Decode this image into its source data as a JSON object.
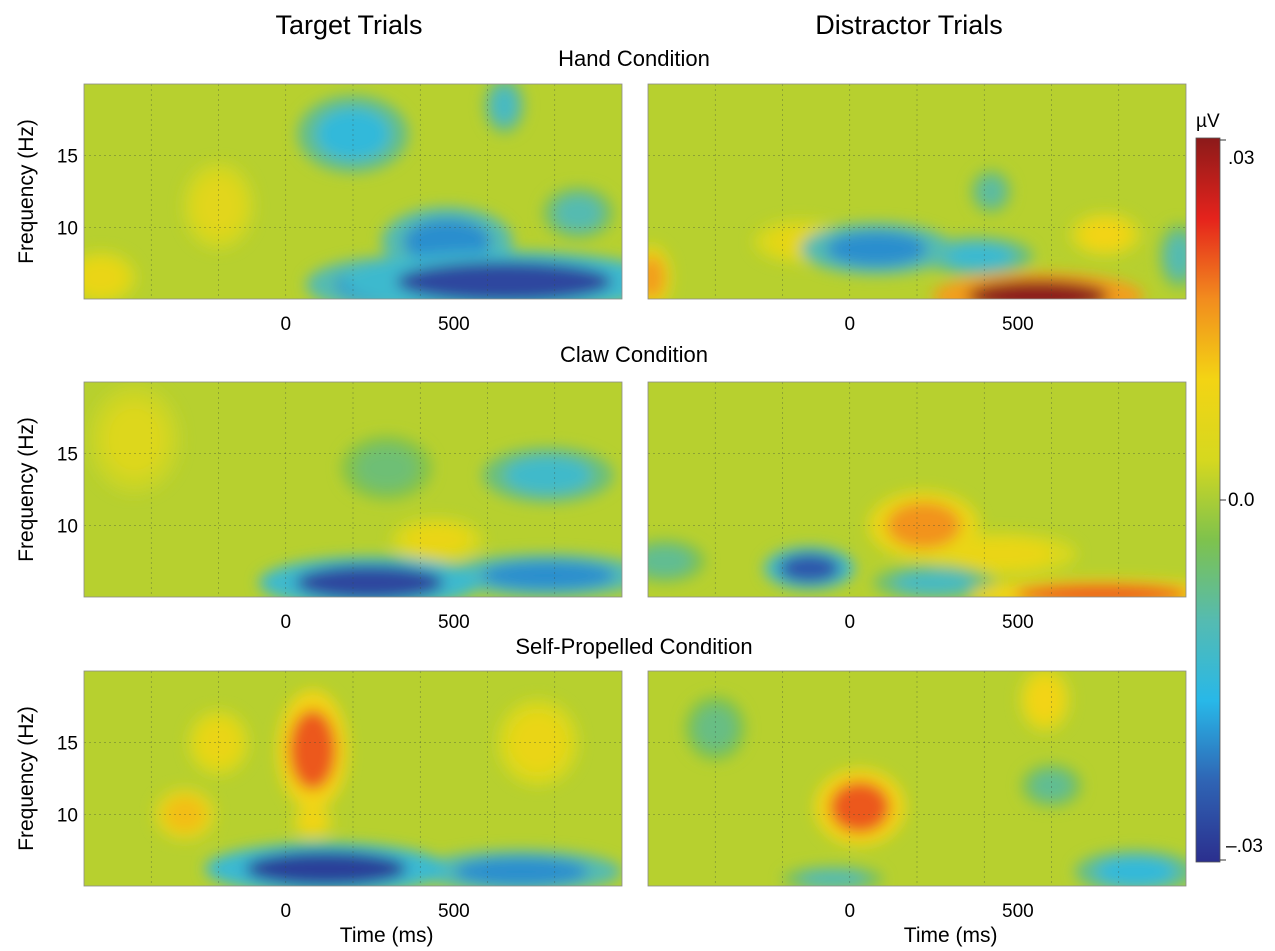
{
  "figure": {
    "column_titles": [
      "Target Trials",
      "Distractor Trials"
    ],
    "row_titles": [
      "Hand Condition",
      "Claw Condition",
      "Self-Propelled Condition"
    ],
    "colorbar": {
      "unit": "µV",
      "tick_labels": [
        ".03",
        "0.0",
        "–.03"
      ],
      "ticks": [
        0.03,
        0.0,
        -0.03
      ],
      "range": [
        -0.03,
        0.03
      ],
      "colormap": "jet",
      "color_stops": [
        "#2b2f8e",
        "#2f64b4",
        "#28b8e8",
        "#55bbb1",
        "#7ec24d",
        "#d6d81f",
        "#f3d414",
        "#f28c1e",
        "#e5231c",
        "#8c1a1a"
      ]
    }
  },
  "chart_data": {
    "type": "heatmap",
    "layout": "3 rows x 2 columns of time-frequency maps",
    "xlabel": "Time (ms)",
    "ylabel": "Frequency (Hz)",
    "xlim": [
      -600,
      1000
    ],
    "ylim": [
      5,
      20
    ],
    "xticks": [
      0,
      500
    ],
    "yticks": [
      10,
      15
    ],
    "grid": true,
    "value_unit": "µV",
    "value_range": [
      -0.03,
      0.03
    ],
    "panels": [
      {
        "row": "Hand Condition",
        "column": "Target Trials",
        "features": [
          {
            "time": 650,
            "freq": 6.2,
            "w_time": 320,
            "w_freq": 1.4,
            "value": -0.027
          },
          {
            "time": 330,
            "freq": 6.0,
            "w_time": 180,
            "w_freq": 1.3,
            "value": -0.02
          },
          {
            "time": 480,
            "freq": 9.0,
            "w_time": 130,
            "w_freq": 1.6,
            "value": -0.02
          },
          {
            "time": 200,
            "freq": 16.5,
            "w_time": 110,
            "w_freq": 1.8,
            "value": -0.015
          },
          {
            "time": 650,
            "freq": 18.5,
            "w_time": 40,
            "w_freq": 1.3,
            "value": -0.012
          },
          {
            "time": 870,
            "freq": 11.0,
            "w_time": 70,
            "w_freq": 1.2,
            "value": -0.01
          },
          {
            "time": -550,
            "freq": 6.5,
            "w_time": 70,
            "w_freq": 1.2,
            "value": 0.008
          },
          {
            "time": -200,
            "freq": 11.5,
            "w_time": 70,
            "w_freq": 2.0,
            "value": 0.006
          }
        ]
      },
      {
        "row": "Hand Condition",
        "column": "Distractor Trials",
        "features": [
          {
            "time": 560,
            "freq": 5.2,
            "w_time": 210,
            "w_freq": 1.1,
            "value": 0.03
          },
          {
            "time": 80,
            "freq": 8.5,
            "w_time": 150,
            "w_freq": 1.2,
            "value": -0.02
          },
          {
            "time": 380,
            "freq": 8.0,
            "w_time": 110,
            "w_freq": 0.9,
            "value": -0.014
          },
          {
            "time": 760,
            "freq": 9.5,
            "w_time": 70,
            "w_freq": 1.0,
            "value": 0.01
          },
          {
            "time": -150,
            "freq": 9.0,
            "w_time": 90,
            "w_freq": 1.0,
            "value": 0.007
          },
          {
            "time": 420,
            "freq": 12.5,
            "w_time": 40,
            "w_freq": 1.0,
            "value": -0.009
          },
          {
            "time": -590,
            "freq": 6.5,
            "w_time": 40,
            "w_freq": 1.5,
            "value": 0.015
          },
          {
            "time": 980,
            "freq": 8.0,
            "w_time": 40,
            "w_freq": 1.5,
            "value": -0.01
          }
        ]
      },
      {
        "row": "Claw Condition",
        "column": "Target Trials",
        "features": [
          {
            "time": 250,
            "freq": 6.0,
            "w_time": 220,
            "w_freq": 1.2,
            "value": -0.027
          },
          {
            "time": 780,
            "freq": 6.5,
            "w_time": 200,
            "w_freq": 1.0,
            "value": -0.02
          },
          {
            "time": 780,
            "freq": 13.5,
            "w_time": 130,
            "w_freq": 1.3,
            "value": -0.013
          },
          {
            "time": 450,
            "freq": 9.0,
            "w_time": 90,
            "w_freq": 1.0,
            "value": 0.008
          },
          {
            "time": -450,
            "freq": 16.0,
            "w_time": 90,
            "w_freq": 2.5,
            "value": 0.005
          },
          {
            "time": 300,
            "freq": 14.0,
            "w_time": 90,
            "w_freq": 1.5,
            "value": -0.006
          }
        ]
      },
      {
        "row": "Claw Condition",
        "column": "Distractor Trials",
        "features": [
          {
            "time": 220,
            "freq": 10.0,
            "w_time": 110,
            "w_freq": 1.6,
            "value": 0.016
          },
          {
            "time": -120,
            "freq": 7.0,
            "w_time": 90,
            "w_freq": 1.0,
            "value": -0.025
          },
          {
            "time": 250,
            "freq": 6.0,
            "w_time": 120,
            "w_freq": 0.8,
            "value": -0.012
          },
          {
            "time": 750,
            "freq": 5.2,
            "w_time": 260,
            "w_freq": 0.7,
            "value": 0.02
          },
          {
            "time": 450,
            "freq": 8.0,
            "w_time": 150,
            "w_freq": 1.0,
            "value": 0.008
          },
          {
            "time": -550,
            "freq": 7.5,
            "w_time": 80,
            "w_freq": 1.0,
            "value": -0.008
          }
        ]
      },
      {
        "row": "Self-Propelled Condition",
        "column": "Target Trials",
        "features": [
          {
            "time": 80,
            "freq": 14.5,
            "w_time": 70,
            "w_freq": 2.8,
            "value": 0.02
          },
          {
            "time": 120,
            "freq": 6.2,
            "w_time": 240,
            "w_freq": 1.2,
            "value": -0.028
          },
          {
            "time": 700,
            "freq": 6.0,
            "w_time": 200,
            "w_freq": 1.0,
            "value": -0.02
          },
          {
            "time": -300,
            "freq": 10.0,
            "w_time": 60,
            "w_freq": 1.2,
            "value": 0.012
          },
          {
            "time": 80,
            "freq": 9.5,
            "w_time": 40,
            "w_freq": 0.7,
            "value": 0.01
          },
          {
            "time": 750,
            "freq": 15.0,
            "w_time": 80,
            "w_freq": 2.0,
            "value": 0.008
          },
          {
            "time": -200,
            "freq": 15.0,
            "w_time": 60,
            "w_freq": 1.5,
            "value": 0.008
          }
        ]
      },
      {
        "row": "Self-Propelled Condition",
        "column": "Distractor Trials",
        "features": [
          {
            "time": 30,
            "freq": 10.5,
            "w_time": 90,
            "w_freq": 1.8,
            "value": 0.02
          },
          {
            "time": 850,
            "freq": 6.0,
            "w_time": 120,
            "w_freq": 1.0,
            "value": -0.015
          },
          {
            "time": -50,
            "freq": 5.5,
            "w_time": 100,
            "w_freq": 0.6,
            "value": -0.01
          },
          {
            "time": 600,
            "freq": 12.0,
            "w_time": 60,
            "w_freq": 1.0,
            "value": -0.008
          },
          {
            "time": 580,
            "freq": 18.0,
            "w_time": 50,
            "w_freq": 1.5,
            "value": 0.01
          },
          {
            "time": -400,
            "freq": 16.0,
            "w_time": 60,
            "w_freq": 1.5,
            "value": -0.007
          }
        ]
      }
    ]
  }
}
